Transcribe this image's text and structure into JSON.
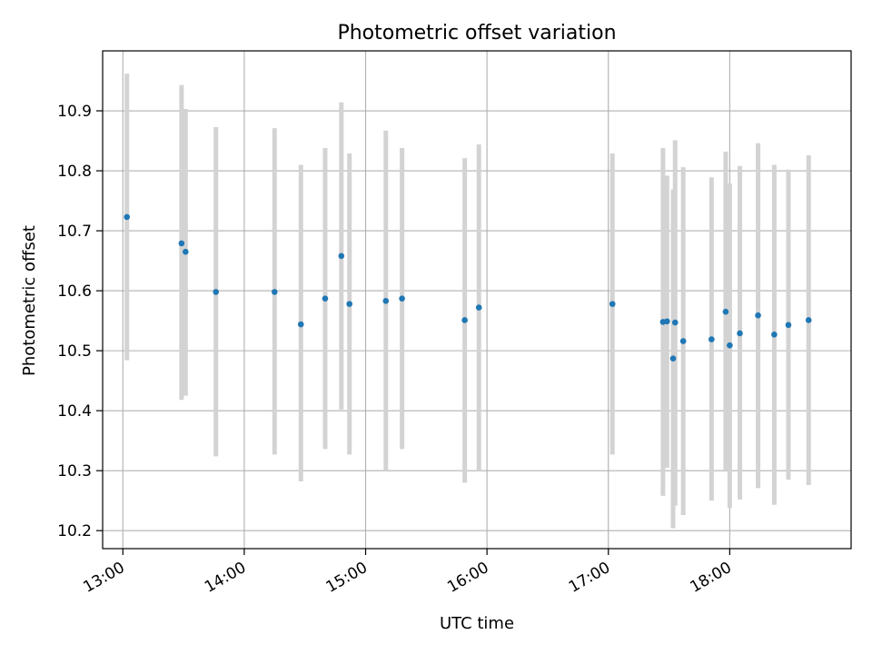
{
  "chart_data": {
    "type": "scatter",
    "title": "Photometric offset variation",
    "xlabel": "UTC time",
    "ylabel": "Photometric offset",
    "xlim": [
      "12:50",
      "19:00"
    ],
    "ylim": [
      10.17,
      11.0
    ],
    "x_ticks": [
      "13:00",
      "14:00",
      "15:00",
      "16:00",
      "17:00",
      "18:00"
    ],
    "y_ticks": [
      10.2,
      10.3,
      10.4,
      10.5,
      10.6,
      10.7,
      10.8,
      10.9
    ],
    "grid": true,
    "point_color": "#1f77b4",
    "errorbar_color": "#d3d3d3",
    "points": [
      {
        "t": "13:02",
        "y": 10.723,
        "low": 10.484,
        "high": 10.962
      },
      {
        "t": "13:29",
        "y": 10.679,
        "low": 10.418,
        "high": 10.943
      },
      {
        "t": "13:31",
        "y": 10.665,
        "low": 10.425,
        "high": 10.903
      },
      {
        "t": "13:46",
        "y": 10.598,
        "low": 10.324,
        "high": 10.873
      },
      {
        "t": "14:15",
        "y": 10.598,
        "low": 10.327,
        "high": 10.871
      },
      {
        "t": "14:28",
        "y": 10.544,
        "low": 10.282,
        "high": 10.81
      },
      {
        "t": "14:40",
        "y": 10.587,
        "low": 10.336,
        "high": 10.838
      },
      {
        "t": "14:48",
        "y": 10.658,
        "low": 10.402,
        "high": 10.914
      },
      {
        "t": "14:52",
        "y": 10.578,
        "low": 10.327,
        "high": 10.829
      },
      {
        "t": "15:10",
        "y": 10.583,
        "low": 10.3,
        "high": 10.867
      },
      {
        "t": "15:18",
        "y": 10.587,
        "low": 10.336,
        "high": 10.838
      },
      {
        "t": "15:49",
        "y": 10.551,
        "low": 10.28,
        "high": 10.821
      },
      {
        "t": "15:56",
        "y": 10.572,
        "low": 10.3,
        "high": 10.844
      },
      {
        "t": "17:02",
        "y": 10.578,
        "low": 10.327,
        "high": 10.829
      },
      {
        "t": "17:27",
        "y": 10.548,
        "low": 10.258,
        "high": 10.838
      },
      {
        "t": "17:29",
        "y": 10.549,
        "low": 10.305,
        "high": 10.792
      },
      {
        "t": "17:32",
        "y": 10.487,
        "low": 10.204,
        "high": 10.769
      },
      {
        "t": "17:33",
        "y": 10.547,
        "low": 10.242,
        "high": 10.851
      },
      {
        "t": "17:37",
        "y": 10.516,
        "low": 10.226,
        "high": 10.806
      },
      {
        "t": "17:51",
        "y": 10.519,
        "low": 10.25,
        "high": 10.789
      },
      {
        "t": "17:58",
        "y": 10.565,
        "low": 10.3,
        "high": 10.832
      },
      {
        "t": "18:00",
        "y": 10.509,
        "low": 10.238,
        "high": 10.779
      },
      {
        "t": "18:05",
        "y": 10.529,
        "low": 10.252,
        "high": 10.808
      },
      {
        "t": "18:14",
        "y": 10.559,
        "low": 10.271,
        "high": 10.846
      },
      {
        "t": "18:22",
        "y": 10.527,
        "low": 10.243,
        "high": 10.81
      },
      {
        "t": "18:29",
        "y": 10.543,
        "low": 10.285,
        "high": 10.802
      },
      {
        "t": "18:39",
        "y": 10.551,
        "low": 10.276,
        "high": 10.826
      }
    ]
  }
}
